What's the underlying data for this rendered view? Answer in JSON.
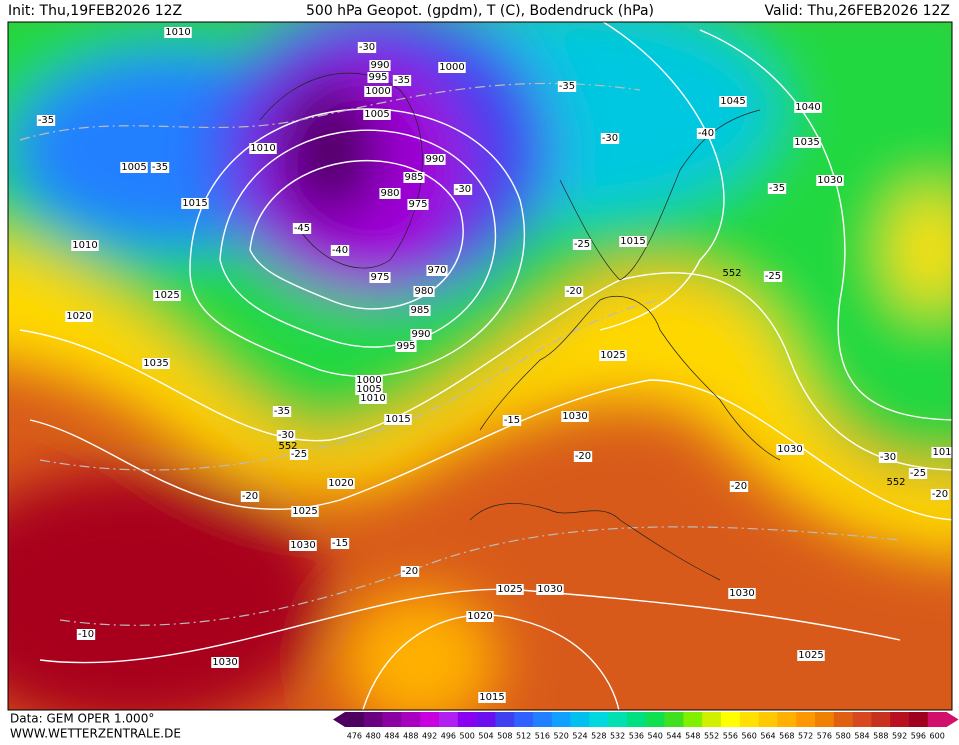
{
  "header": {
    "init": "Init: Thu,19FEB2026 12Z",
    "title": "500 hPa Geopot. (gpdm), T (C), Bodendruck (hPa)",
    "valid": "Valid: Thu,26FEB2026 12Z"
  },
  "footer": {
    "data_source": "Data: GEM OPER 1.000°",
    "website": "WWW.WETTERZENTRALE.DE"
  },
  "legend": {
    "values": [
      476,
      480,
      484,
      488,
      492,
      496,
      500,
      504,
      508,
      512,
      516,
      520,
      524,
      528,
      532,
      536,
      540,
      544,
      548,
      552,
      556,
      560,
      564,
      568,
      572,
      576,
      580,
      584,
      588,
      592,
      596,
      600
    ],
    "colors": [
      "#4d0060",
      "#6a0080",
      "#8a00a0",
      "#a800c0",
      "#c800e0",
      "#b020f0",
      "#8a00f0",
      "#6a10f0",
      "#4040f0",
      "#3060ff",
      "#2080ff",
      "#10a0ff",
      "#00c0f0",
      "#00d8e0",
      "#00e0b0",
      "#00e080",
      "#10e050",
      "#40e020",
      "#80f000",
      "#d0f000",
      "#ffff00",
      "#ffe000",
      "#ffc800",
      "#ffb000",
      "#ff9800",
      "#f08000",
      "#e06010",
      "#d84820",
      "#c83020",
      "#b81020",
      "#a00020",
      "#d0106a"
    ]
  },
  "map": {
    "pressure_labels": [
      1010,
      990,
      995,
      1000,
      1000,
      1005,
      1010,
      1005,
      990,
      985,
      980,
      975,
      1015,
      1010,
      975,
      970,
      980,
      985,
      1025,
      1020,
      990,
      995,
      1035,
      1000,
      1005,
      1010,
      1015,
      1045,
      1040,
      1035,
      1030,
      1015,
      1025,
      1030,
      1030,
      1020,
      1025,
      1030,
      1025,
      1030,
      1030,
      1020,
      1030,
      1025,
      1015,
      101
    ],
    "temperature_labels": [
      -30,
      -35,
      -35,
      -35,
      -35,
      -30,
      -40,
      -35,
      -30,
      -45,
      -40,
      -25,
      -25,
      -20,
      -35,
      -30,
      -25,
      -15,
      -20,
      -20,
      -20,
      -15,
      -20,
      -10,
      -30,
      -25,
      -20
    ],
    "geopotential_labels": [
      552,
      552,
      552
    ]
  }
}
